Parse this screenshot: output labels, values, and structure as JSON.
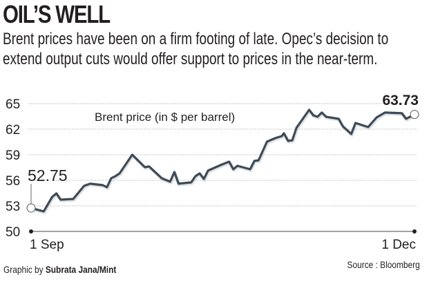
{
  "header": {
    "title": "OIL’S WELL",
    "subtitle": "Brent prices have been on a firm footing of late. Opec’s decision to extend output cuts would offer support to prices in the near-term."
  },
  "footer": {
    "credit_prefix": "Graphic by ",
    "credit_name": "Subrata Jana/Mint",
    "source": "Source : Bloomberg"
  },
  "chart_data": {
    "type": "line",
    "title": "OIL’S WELL",
    "series_label": "Brent price (in $ per barrel)",
    "xlabel": "",
    "ylabel": "",
    "x_ticks": [
      {
        "day": 0,
        "label": "1 Sep"
      },
      {
        "day": 91,
        "label": "1 Dec"
      }
    ],
    "xlim": [
      0,
      91
    ],
    "y_ticks": [
      50,
      53,
      56,
      59,
      62,
      65
    ],
    "ylim": [
      50,
      65
    ],
    "grid": true,
    "annotations": [
      {
        "day": 0,
        "value": 52.75,
        "label": "52.75",
        "position": "start"
      },
      {
        "day": 91,
        "value": 63.73,
        "label": "63.73",
        "position": "end"
      }
    ],
    "colors": {
      "line": "#3d4a55",
      "grid": "#cfcfcf",
      "text": "#231f20"
    },
    "series": [
      {
        "name": "Brent price (in $ per barrel)",
        "points": [
          [
            0,
            52.75
          ],
          [
            3,
            52.35
          ],
          [
            5,
            54.05
          ],
          [
            6,
            54.46
          ],
          [
            7,
            53.73
          ],
          [
            10,
            53.81
          ],
          [
            11.5,
            54.7
          ],
          [
            12.6,
            55.35
          ],
          [
            14,
            55.6
          ],
          [
            17,
            55.43
          ],
          [
            18,
            55.19
          ],
          [
            19,
            56.24
          ],
          [
            20,
            56.49
          ],
          [
            21,
            56.81
          ],
          [
            24,
            59.0
          ],
          [
            27,
            57.54
          ],
          [
            28,
            57.62
          ],
          [
            31,
            56.24
          ],
          [
            33,
            55.84
          ],
          [
            34,
            56.97
          ],
          [
            35,
            55.6
          ],
          [
            38,
            55.76
          ],
          [
            39,
            56.49
          ],
          [
            40,
            56.81
          ],
          [
            41,
            56.16
          ],
          [
            42,
            57.14
          ],
          [
            45,
            57.79
          ],
          [
            47,
            58.19
          ],
          [
            48,
            57.3
          ],
          [
            49,
            57.7
          ],
          [
            52,
            57.3
          ],
          [
            53,
            58.27
          ],
          [
            54,
            58.35
          ],
          [
            56,
            60.54
          ],
          [
            58,
            60.95
          ],
          [
            59.5,
            61.19
          ],
          [
            60,
            61.52
          ],
          [
            61,
            60.62
          ],
          [
            62,
            60.7
          ],
          [
            63,
            62.17
          ],
          [
            66,
            64.27
          ],
          [
            67,
            63.62
          ],
          [
            68,
            63.46
          ],
          [
            69,
            63.95
          ],
          [
            70,
            63.46
          ],
          [
            73,
            63.22
          ],
          [
            74,
            62.33
          ],
          [
            76,
            61.44
          ],
          [
            77,
            62.73
          ],
          [
            80,
            62.25
          ],
          [
            82,
            63.38
          ],
          [
            84,
            63.95
          ],
          [
            88,
            63.87
          ],
          [
            89,
            63.22
          ],
          [
            91,
            63.73
          ]
        ]
      }
    ]
  }
}
